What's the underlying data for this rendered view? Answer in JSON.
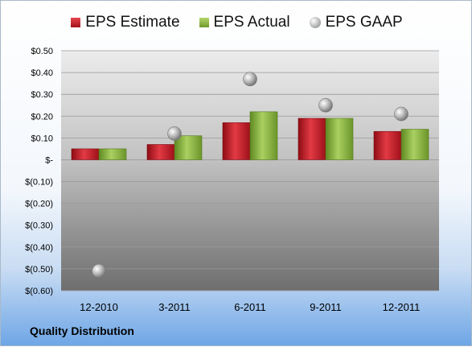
{
  "chart_data": {
    "type": "bar",
    "categories": [
      "12-2010",
      "3-2011",
      "6-2011",
      "9-2011",
      "12-2011"
    ],
    "series": [
      {
        "name": "EPS Estimate",
        "kind": "bar",
        "color": "#c4161f",
        "values": [
          0.05,
          0.07,
          0.17,
          0.19,
          0.13
        ]
      },
      {
        "name": "EPS Actual",
        "kind": "bar",
        "color": "#8db443",
        "values": [
          0.05,
          0.11,
          0.22,
          0.19,
          0.14
        ]
      },
      {
        "name": "EPS GAAP",
        "kind": "marker",
        "color": "#a8a8a8",
        "values": [
          -0.51,
          0.12,
          0.37,
          0.25,
          0.21
        ]
      }
    ],
    "ylim": [
      -0.6,
      0.5
    ],
    "yticks": [
      0.5,
      0.4,
      0.3,
      0.2,
      0.1,
      0,
      -0.1,
      -0.2,
      -0.3,
      -0.4,
      -0.5,
      -0.6
    ],
    "ytick_labels": [
      "$0.50",
      "$0.40",
      "$0.30",
      "$0.20",
      "$0.10",
      "$-",
      "$(0.10)",
      "$(0.20)",
      "$(0.30)",
      "$(0.40)",
      "$(0.50)",
      "$(0.60)"
    ],
    "legend_position": "top",
    "grid": true
  },
  "legend": {
    "estimate": "EPS Estimate",
    "actual": "EPS Actual",
    "gaap": "EPS GAAP"
  },
  "footer": {
    "company": "Quality Distribution"
  }
}
